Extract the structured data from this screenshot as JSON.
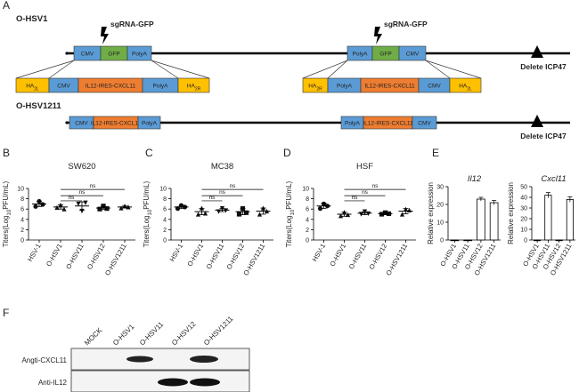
{
  "panel_labels": [
    "A",
    "B",
    "C",
    "D",
    "E",
    "F"
  ],
  "diagram": {
    "constructs": [
      {
        "name": "O-HSV1",
        "deletion": "Delete ICP47",
        "cassettes": [
          {
            "sgrna": "sgRNA-GFP",
            "elements": [
              {
                "text": "CMV",
                "color": "#5b9bd5"
              },
              {
                "text": "GFP",
                "color": "#70ad47"
              },
              {
                "text": "PolyA",
                "color": "#5b9bd5"
              }
            ],
            "expanded": [
              {
                "text": "HA",
                "sub": "2L",
                "color": "#ffc000"
              },
              {
                "text": "CMV",
                "color": "#5b9bd5"
              },
              {
                "text": "IL12-IRES-CXCL11",
                "color": "#ed7d31"
              },
              {
                "text": "PolyA",
                "color": "#5b9bd5"
              },
              {
                "text": "HA",
                "sub": "2R",
                "color": "#ffc000"
              }
            ]
          },
          {
            "sgrna": "sgRNA-GFP",
            "elements": [
              {
                "text": "PolyA",
                "color": "#5b9bd5"
              },
              {
                "text": "GFP",
                "color": "#70ad47"
              },
              {
                "text": "CMV",
                "color": "#5b9bd5"
              }
            ],
            "expanded": [
              {
                "text": "HA",
                "sub": "2R",
                "color": "#ffc000"
              },
              {
                "text": "PolyA",
                "color": "#5b9bd5"
              },
              {
                "text": "IL12-IRES-CXCL11",
                "color": "#ed7d31"
              },
              {
                "text": "CMV",
                "color": "#5b9bd5"
              },
              {
                "text": "HA",
                "sub": "2L",
                "color": "#ffc000"
              }
            ]
          }
        ]
      },
      {
        "name": "O-HSV1211",
        "deletion": "Delete ICP47",
        "cassettes": [
          {
            "elements": [
              {
                "text": "CMV",
                "color": "#5b9bd5"
              },
              {
                "text": "IL12-IRES-CXCL11",
                "color": "#ed7d31"
              },
              {
                "text": "PolyA",
                "color": "#5b9bd5"
              }
            ]
          },
          {
            "elements": [
              {
                "text": "PolyA",
                "color": "#5b9bd5"
              },
              {
                "text": "IL12-IRES-CXCL11",
                "color": "#ed7d31"
              },
              {
                "text": "CMV",
                "color": "#5b9bd5"
              }
            ]
          }
        ]
      }
    ]
  },
  "chart_data": [
    {
      "type": "dot",
      "title": "SW620",
      "y_label": [
        "Titers(Log",
        "10",
        "PFU/mL)"
      ],
      "categories": [
        "HSV-1",
        "O-HSV1",
        "O-HSV11",
        "O-HSV12",
        "O-HSV1211"
      ],
      "values": [
        7.0,
        6.4,
        6.6,
        6.2,
        6.4
      ],
      "errors": [
        0.5,
        0.4,
        0.8,
        0.3,
        0.2
      ],
      "points": [
        [
          6.5,
          7.5,
          6.9
        ],
        [
          6.3,
          6.8,
          6.0
        ],
        [
          7.0,
          5.6,
          7.2
        ],
        [
          6.0,
          6.6,
          6.1
        ],
        [
          6.2,
          6.6,
          6.4
        ]
      ],
      "ylim": [
        0,
        10
      ],
      "yticks": [
        0,
        2,
        4,
        6,
        8,
        10
      ],
      "comparisons": [
        {
          "x": [
            1,
            4
          ],
          "y": 9.8,
          "label": "ns"
        },
        {
          "x": [
            1,
            3
          ],
          "y": 8.6,
          "label": "ns"
        },
        {
          "x": [
            1,
            2
          ],
          "y": 7.6,
          "label": "ns"
        }
      ]
    },
    {
      "type": "dot",
      "title": "MC38",
      "y_label": [
        "Titers(Log",
        "10",
        "PFU/mL)"
      ],
      "categories": [
        "HSV-1",
        "O-HSV1",
        "O-HSV11",
        "O-HSV12",
        "O-HSV1211"
      ],
      "values": [
        6.4,
        5.5,
        5.8,
        5.5,
        5.6
      ],
      "errors": [
        0.3,
        0.6,
        0.3,
        0.6,
        0.6
      ],
      "points": [
        [
          6.1,
          6.7,
          6.4
        ],
        [
          5.0,
          6.2,
          5.2
        ],
        [
          5.5,
          6.1,
          5.7
        ],
        [
          5.0,
          6.1,
          5.3
        ],
        [
          5.0,
          6.2,
          5.6
        ]
      ],
      "ylim": [
        0,
        10
      ],
      "yticks": [
        0,
        2,
        4,
        6,
        8,
        10
      ],
      "comparisons": [
        {
          "x": [
            1,
            4
          ],
          "y": 9.8,
          "label": "ns"
        },
        {
          "x": [
            1,
            3
          ],
          "y": 8.6,
          "label": "ns"
        },
        {
          "x": [
            1,
            2
          ],
          "y": 7.6,
          "label": "ns"
        }
      ]
    },
    {
      "type": "dot",
      "title": "HSF",
      "y_label": [
        "Titers(Log",
        "10",
        "PFU/mL)"
      ],
      "categories": [
        "HSV-1",
        "O-HSV1",
        "O-HSV11",
        "O-HSV12",
        "O-HSV1211"
      ],
      "values": [
        6.6,
        5.0,
        5.2,
        5.1,
        5.6
      ],
      "errors": [
        0.5,
        0.4,
        0.3,
        0.2,
        0.5
      ],
      "points": [
        [
          6.1,
          7.0,
          6.6
        ],
        [
          4.7,
          5.4,
          4.9
        ],
        [
          5.0,
          5.5,
          5.1
        ],
        [
          5.0,
          5.3,
          5.1
        ],
        [
          5.0,
          6.0,
          5.8
        ]
      ],
      "ylim": [
        0,
        10
      ],
      "yticks": [
        0,
        2,
        4,
        6,
        8,
        10
      ],
      "comparisons": [
        {
          "x": [
            1,
            4
          ],
          "y": 9.8,
          "label": "ns"
        },
        {
          "x": [
            1,
            3
          ],
          "y": 8.6,
          "label": "ns"
        },
        {
          "x": [
            1,
            2
          ],
          "y": 7.6,
          "label": "ns"
        }
      ]
    },
    {
      "type": "bar",
      "title": "Il12",
      "italic_title": true,
      "y_label": "Relative expression",
      "color": "#ffffff",
      "categories": [
        "O-HSV1",
        "O-HSV11",
        "O-HSV12",
        "O-HSV1211"
      ],
      "values": [
        0,
        0,
        23,
        21
      ],
      "errors": [
        0,
        0,
        1,
        1.2
      ],
      "ylim": [
        0,
        30
      ],
      "yticks": [
        0,
        10,
        20,
        30
      ]
    },
    {
      "type": "bar",
      "title": "Cxcl11",
      "italic_title": true,
      "y_label": "Relative expression",
      "color": "#ffffff",
      "categories": [
        "O-HSV1",
        "O-HSV11",
        "O-HSV12",
        "O-HSV1211"
      ],
      "values": [
        0,
        42,
        0,
        38
      ],
      "errors": [
        0,
        2.5,
        0,
        2.5
      ],
      "ylim": [
        0,
        50
      ],
      "yticks": [
        0,
        10,
        20,
        30,
        40,
        50
      ]
    }
  ],
  "blot": {
    "lanes": [
      "MOCK",
      "O-HSV1",
      "O-HSV11",
      "O-HSV12",
      "O-HSV1211"
    ],
    "rows": [
      "Angti-CXCL11",
      "Anti-IL12"
    ]
  }
}
